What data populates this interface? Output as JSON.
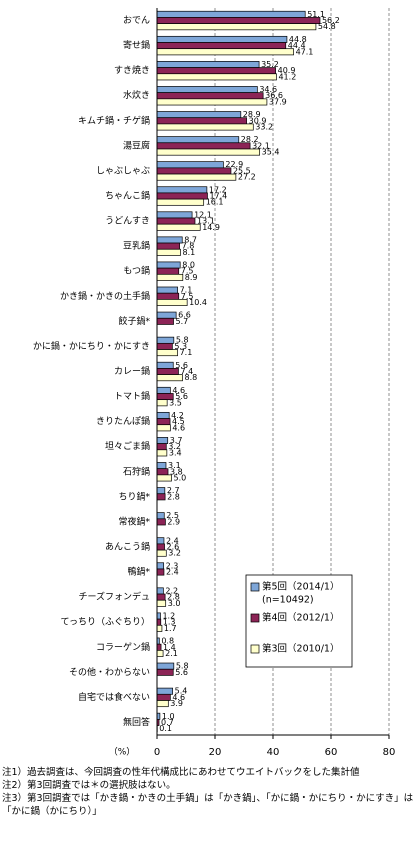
{
  "chart_data": {
    "type": "hbar",
    "categories": [
      "おでん",
      "寄せ鍋",
      "すき焼き",
      "水炊き",
      "キムチ鍋・チゲ鍋",
      "湯豆腐",
      "しゃぶしゃぶ",
      "ちゃんこ鍋",
      "うどんすき",
      "豆乳鍋",
      "もつ鍋",
      "かき鍋・かきの土手鍋",
      "餃子鍋*",
      "かに鍋・かにちり・かにすき",
      "カレー鍋",
      "トマト鍋",
      "きりたんぽ鍋",
      "坦々ごま鍋",
      "石狩鍋",
      "ちり鍋*",
      "常夜鍋*",
      "あんこう鍋",
      "鴨鍋*",
      "チーズフォンデュ",
      "てっちり（ふぐちり）",
      "コラーゲン鍋",
      "その他・わからない",
      "自宅では食べない",
      "無回答"
    ],
    "series": [
      {
        "name": "第5回（2014/1）",
        "color": "#7ea6d8",
        "values": [
          51.1,
          44.8,
          35.2,
          34.6,
          28.9,
          28.2,
          22.9,
          17.2,
          12.1,
          8.7,
          8.0,
          7.1,
          6.6,
          5.8,
          5.6,
          4.6,
          4.2,
          3.7,
          3.1,
          2.7,
          2.5,
          2.4,
          2.3,
          2.2,
          1.2,
          0.8,
          5.8,
          5.4,
          1.0
        ],
        "value_labels": [
          "51.1",
          "44.8",
          "35.2",
          "34.6",
          "28.9",
          "28.2",
          "22.9",
          "17.2",
          "12.1",
          "8.7",
          "8.0",
          "7.1",
          "6.6",
          "5.8",
          "5.6",
          "4.6",
          "4.2",
          "3.7",
          "3.1",
          "2.7",
          "2.5",
          "2.4",
          "2.3",
          "2.2",
          "1.2",
          "0.8",
          "5.8",
          "5.4",
          "1.0"
        ]
      },
      {
        "name": "第4回（2012/1）",
        "color": "#8c2456",
        "values": [
          56.2,
          44.4,
          40.9,
          36.6,
          30.9,
          32.1,
          25.5,
          17.4,
          13.1,
          7.8,
          7.5,
          7.5,
          5.7,
          5.3,
          7.4,
          5.6,
          4.5,
          3.2,
          3.8,
          2.8,
          2.9,
          2.6,
          2.4,
          2.8,
          1.3,
          1.4,
          5.6,
          4.6,
          0.7
        ],
        "value_labels": [
          "56.2",
          "44.4",
          "40.9",
          "36.6",
          "30.9",
          "32.1",
          "25.5",
          "17.4",
          "13.1",
          "7.8",
          "7.5",
          "7.5",
          "5.7",
          "5.3",
          "7.4",
          "5.6",
          "4.5",
          "3.2",
          "3.8",
          "2.8",
          "2.9",
          "2.6",
          "2.4",
          "2.8",
          "1.3",
          "1.4",
          "5.6",
          "4.6",
          "0.7"
        ]
      },
      {
        "name": "第3回（2010/1）",
        "color": "#ffffcc",
        "values": [
          54.8,
          47.1,
          41.2,
          37.9,
          33.2,
          35.4,
          27.2,
          16.1,
          14.9,
          8.1,
          8.9,
          10.4,
          null,
          7.1,
          8.8,
          3.5,
          4.6,
          3.4,
          5.0,
          null,
          null,
          3.2,
          null,
          3.0,
          1.7,
          2.1,
          null,
          3.9,
          0.1
        ],
        "value_labels": [
          "54.8",
          "47.1",
          "41.2",
          "37.9",
          "33.2",
          "35.4",
          "27.2",
          "16.1",
          "14.9",
          "8.1",
          "8.9",
          "10.4",
          null,
          "7.1",
          "8.8",
          "3.5",
          "4.6",
          "3.4",
          "5.0",
          null,
          null,
          "3.2",
          null,
          "3.0",
          "1.7",
          "2.1",
          null,
          "3.9",
          "0.1"
        ]
      }
    ],
    "legend_note": "(n=10492)",
    "xlabel": "（%）",
    "xlim": [
      0,
      80
    ],
    "xticks": [
      0,
      20,
      40,
      60,
      80
    ],
    "grid": true,
    "notes": [
      "注1）過去調査は、今回調査の性年代構成比にあわせてウエイトバックをした集計値",
      "注2）第3回調査では＊の選択肢はない。",
      "注3）第3回調査では「かき鍋・かきの土手鍋」は「かき鍋」、「かに鍋・かにちり・かにすき」は「かに鍋（かにちり）」"
    ]
  }
}
